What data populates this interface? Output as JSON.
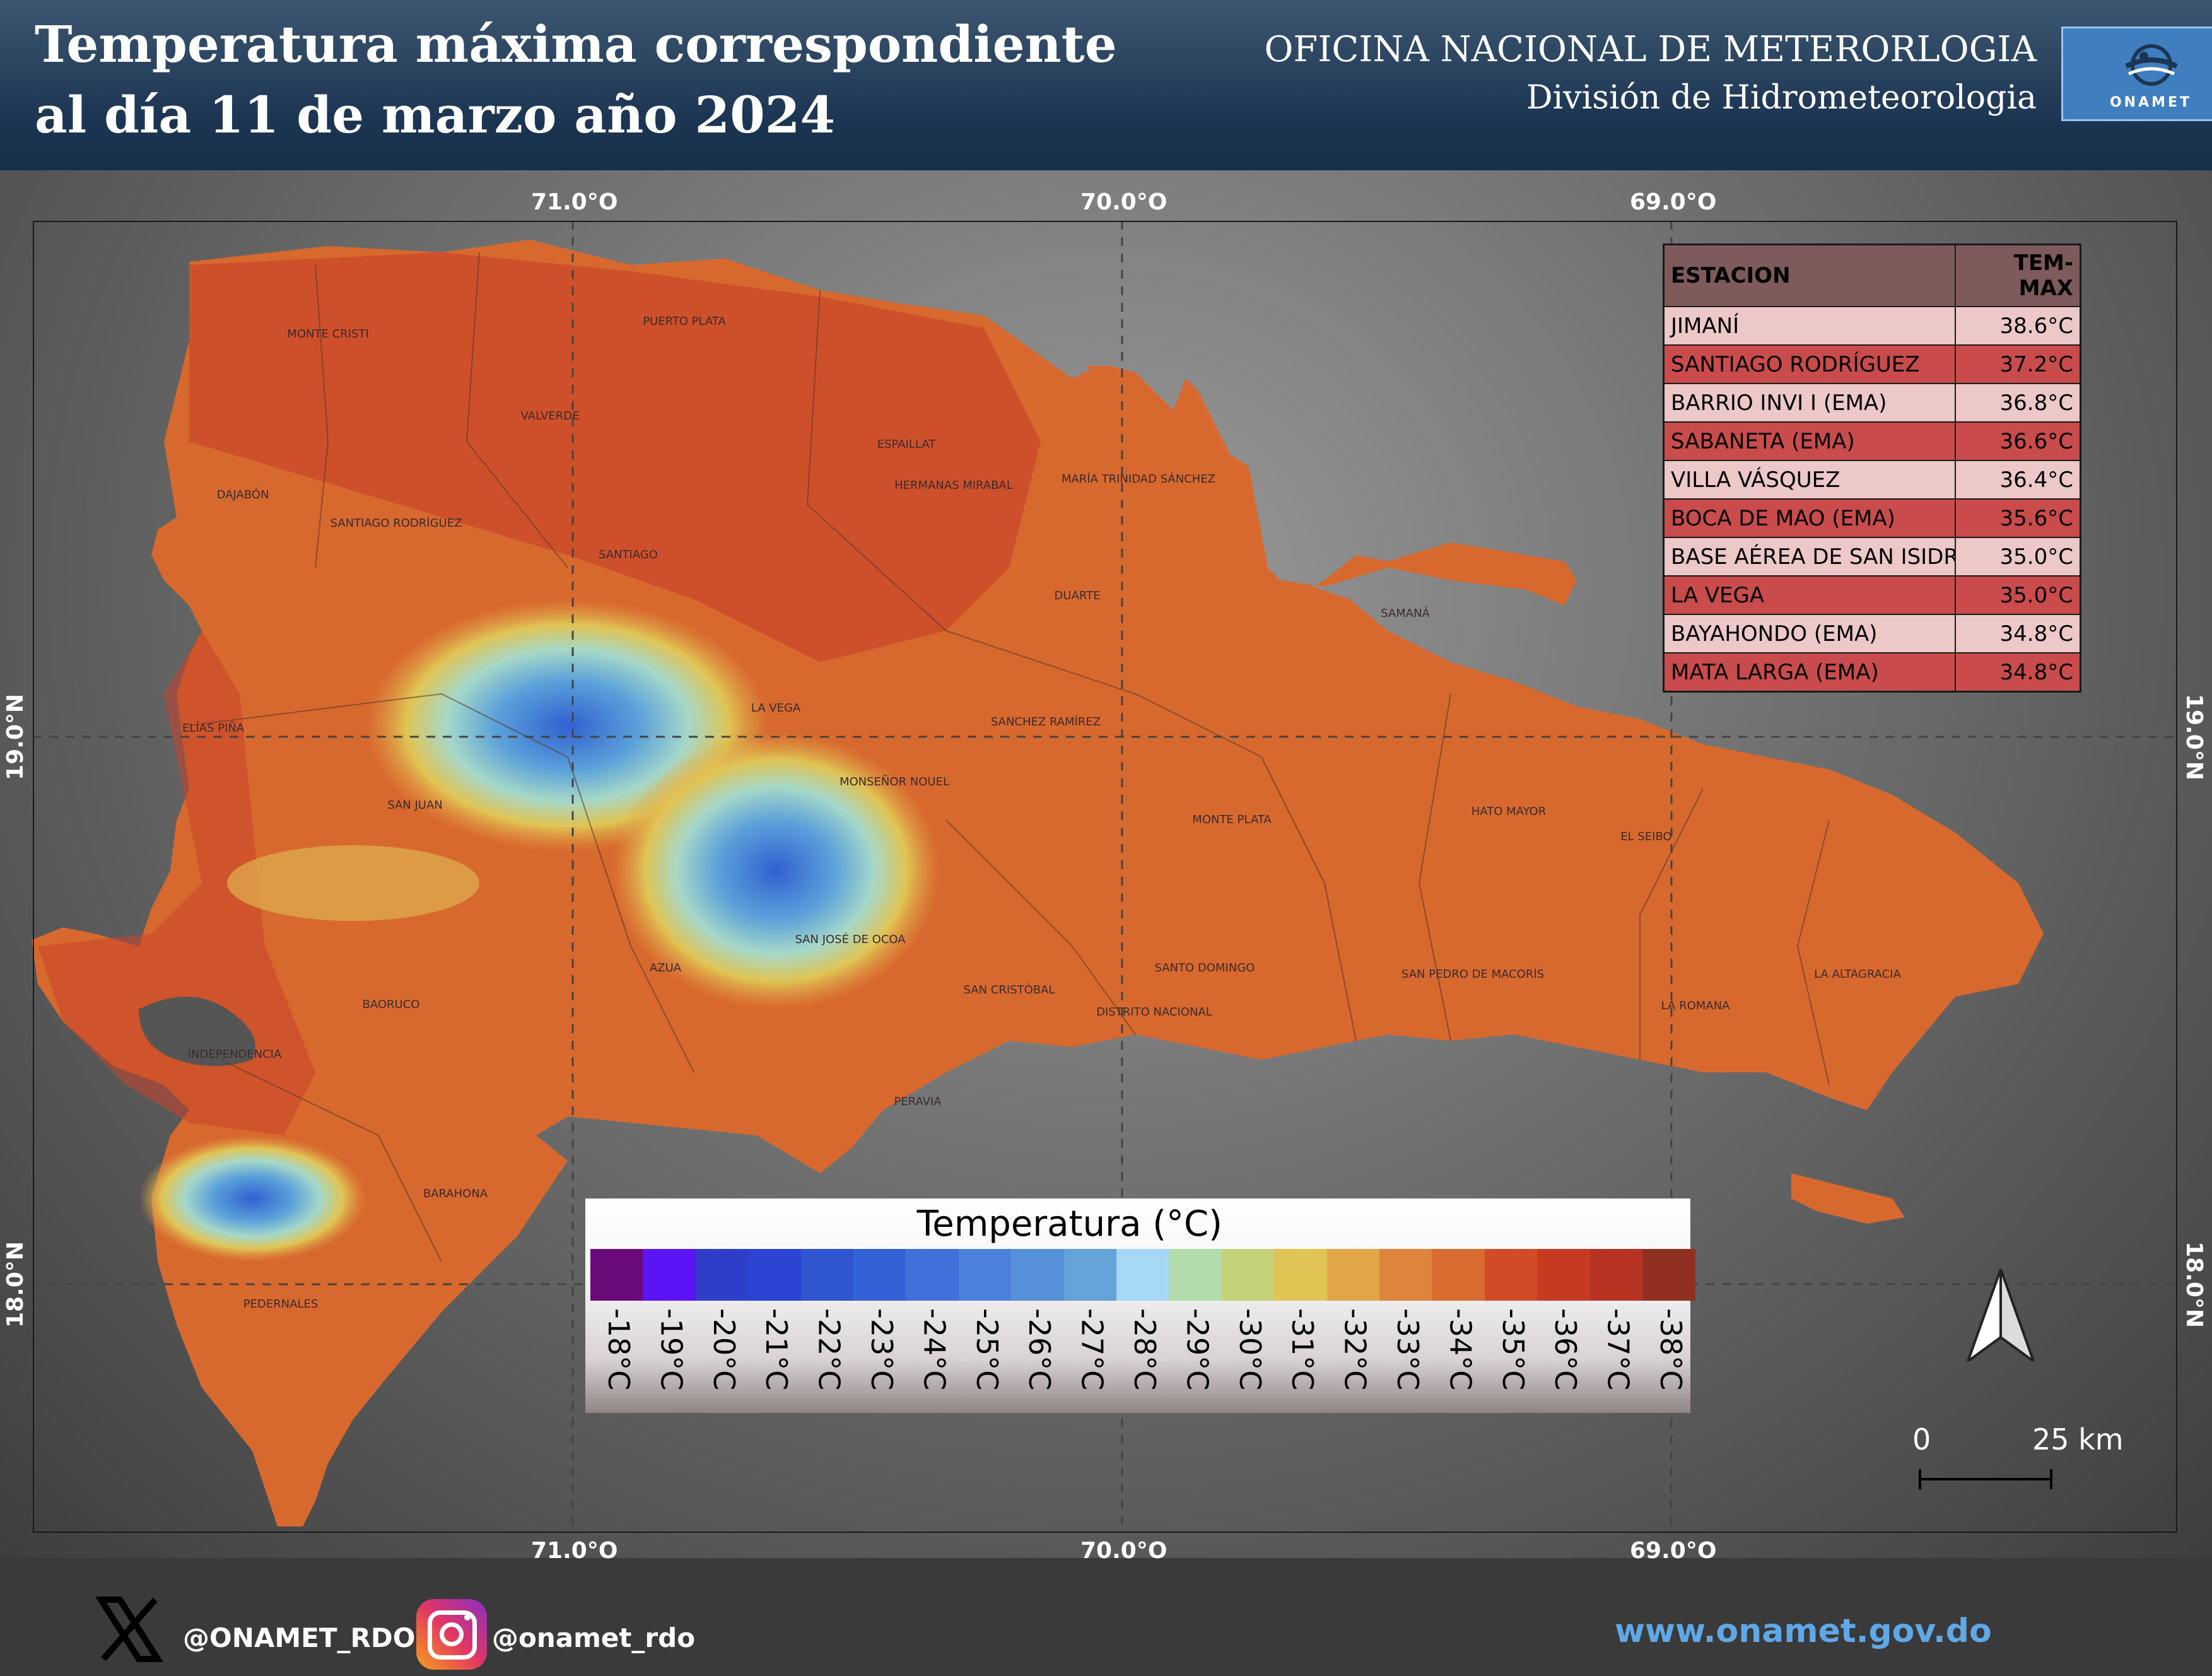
{
  "header": {
    "title_line1": "Temperatura máxima correspondiente",
    "title_line2": "al día 11 de marzo año 2024",
    "org_line1": "OFICINA NACIONAL DE METERORLOGIA",
    "org_line2": "División de Hidrometeorologia",
    "logo_text": "ONAMET",
    "logo_icon": "onamet-logo"
  },
  "map": {
    "longitude_labels": [
      "71.0°O",
      "70.0°O",
      "69.0°O"
    ],
    "latitude_labels": [
      "19.0°N",
      "18.0°N"
    ],
    "province_labels": [
      {
        "name": "MONTE CRISTI"
      },
      {
        "name": "PUERTO PLATA"
      },
      {
        "name": "VALVERDE"
      },
      {
        "name": "ESPAILLAT"
      },
      {
        "name": "HERMANAS MIRABAL"
      },
      {
        "name": "MARÍA TRINIDAD SÁNCHEZ"
      },
      {
        "name": "DAJABÓN"
      },
      {
        "name": "SANTIAGO RODRÍGUEZ"
      },
      {
        "name": "SANTIAGO"
      },
      {
        "name": "DUARTE"
      },
      {
        "name": "SAMANÁ"
      },
      {
        "name": "ELÍAS PIÑA"
      },
      {
        "name": "LA VEGA"
      },
      {
        "name": "SANCHEZ RAMÍREZ"
      },
      {
        "name": "SAN JUAN"
      },
      {
        "name": "MONSEÑOR NOUEL"
      },
      {
        "name": "MONTE PLATA"
      },
      {
        "name": "HATO MAYOR"
      },
      {
        "name": "EL SEIBO"
      },
      {
        "name": "SAN JOSÉ DE OCOA"
      },
      {
        "name": "AZUA"
      },
      {
        "name": "SAN CRISTÓBAL"
      },
      {
        "name": "SANTO DOMINGO"
      },
      {
        "name": "DISTRITO NACIONAL"
      },
      {
        "name": "SAN PEDRO DE MACORÍS"
      },
      {
        "name": "LA ROMANA"
      },
      {
        "name": "LA ALTAGRACIA"
      },
      {
        "name": "BAORUCO"
      },
      {
        "name": "INDEPENDENCIA"
      },
      {
        "name": "PERAVIA"
      },
      {
        "name": "BARAHONA"
      },
      {
        "name": "PEDERNALES"
      }
    ]
  },
  "stations_table": {
    "header_station": "ESTACION",
    "header_value": "TEM-MAX",
    "rows": [
      {
        "station": "JIMANÍ",
        "value": "38.6°C"
      },
      {
        "station": "SANTIAGO RODRÍGUEZ",
        "value": "37.2°C"
      },
      {
        "station": "BARRIO INVI I (EMA)",
        "value": "36.8°C"
      },
      {
        "station": "SABANETA (EMA)",
        "value": "36.6°C"
      },
      {
        "station": "VILLA VÁSQUEZ",
        "value": "36.4°C"
      },
      {
        "station": "BOCA DE MAO (EMA)",
        "value": "35.6°C"
      },
      {
        "station": "BASE AÉREA DE SAN ISIDR",
        "value": "35.0°C"
      },
      {
        "station": "LA VEGA",
        "value": "35.0°C"
      },
      {
        "station": "BAYAHONDO (EMA)",
        "value": "34.8°C"
      },
      {
        "station": "MATA LARGA (EMA)",
        "value": "34.8°C"
      }
    ]
  },
  "legend": {
    "title": "Temperatura (°C)",
    "items": [
      {
        "label": "-18°C",
        "color": "#6b0a7a"
      },
      {
        "label": "-19°C",
        "color": "#5b14f5"
      },
      {
        "label": "-20°C",
        "color": "#2f3ec8"
      },
      {
        "label": "-21°C",
        "color": "#2c44d4"
      },
      {
        "label": "-22°C",
        "color": "#2f55d0"
      },
      {
        "label": "-23°C",
        "color": "#3462d6"
      },
      {
        "label": "-24°C",
        "color": "#4270da"
      },
      {
        "label": "-25°C",
        "color": "#4b80dc"
      },
      {
        "label": "-26°C",
        "color": "#5590d8"
      },
      {
        "label": "-27°C",
        "color": "#64a2da"
      },
      {
        "label": "-28°C",
        "color": "#a6d8f6"
      },
      {
        "label": "-29°C",
        "color": "#b2dcac"
      },
      {
        "label": "-30°C",
        "color": "#c6d27a"
      },
      {
        "label": "-31°C",
        "color": "#e0c454"
      },
      {
        "label": "-32°C",
        "color": "#e2a648"
      },
      {
        "label": "-33°C",
        "color": "#de843c"
      },
      {
        "label": "-34°C",
        "color": "#d86c30"
      },
      {
        "label": "-35°C",
        "color": "#d24a26"
      },
      {
        "label": "-36°C",
        "color": "#c63a22"
      },
      {
        "label": "-37°C",
        "color": "#b83224"
      },
      {
        "label": "-38°C",
        "color": "#903020"
      }
    ]
  },
  "scale_bar": {
    "start_label": "0",
    "end_label": "25 km"
  },
  "north_arrow_icon": "north-arrow-icon",
  "footer": {
    "x_handle": "@ONAMET_RDO",
    "instagram_handle": "@onamet_rdo",
    "website": "www.onamet.gov.do",
    "x_icon": "x-logo-icon",
    "instagram_icon": "instagram-icon"
  }
}
